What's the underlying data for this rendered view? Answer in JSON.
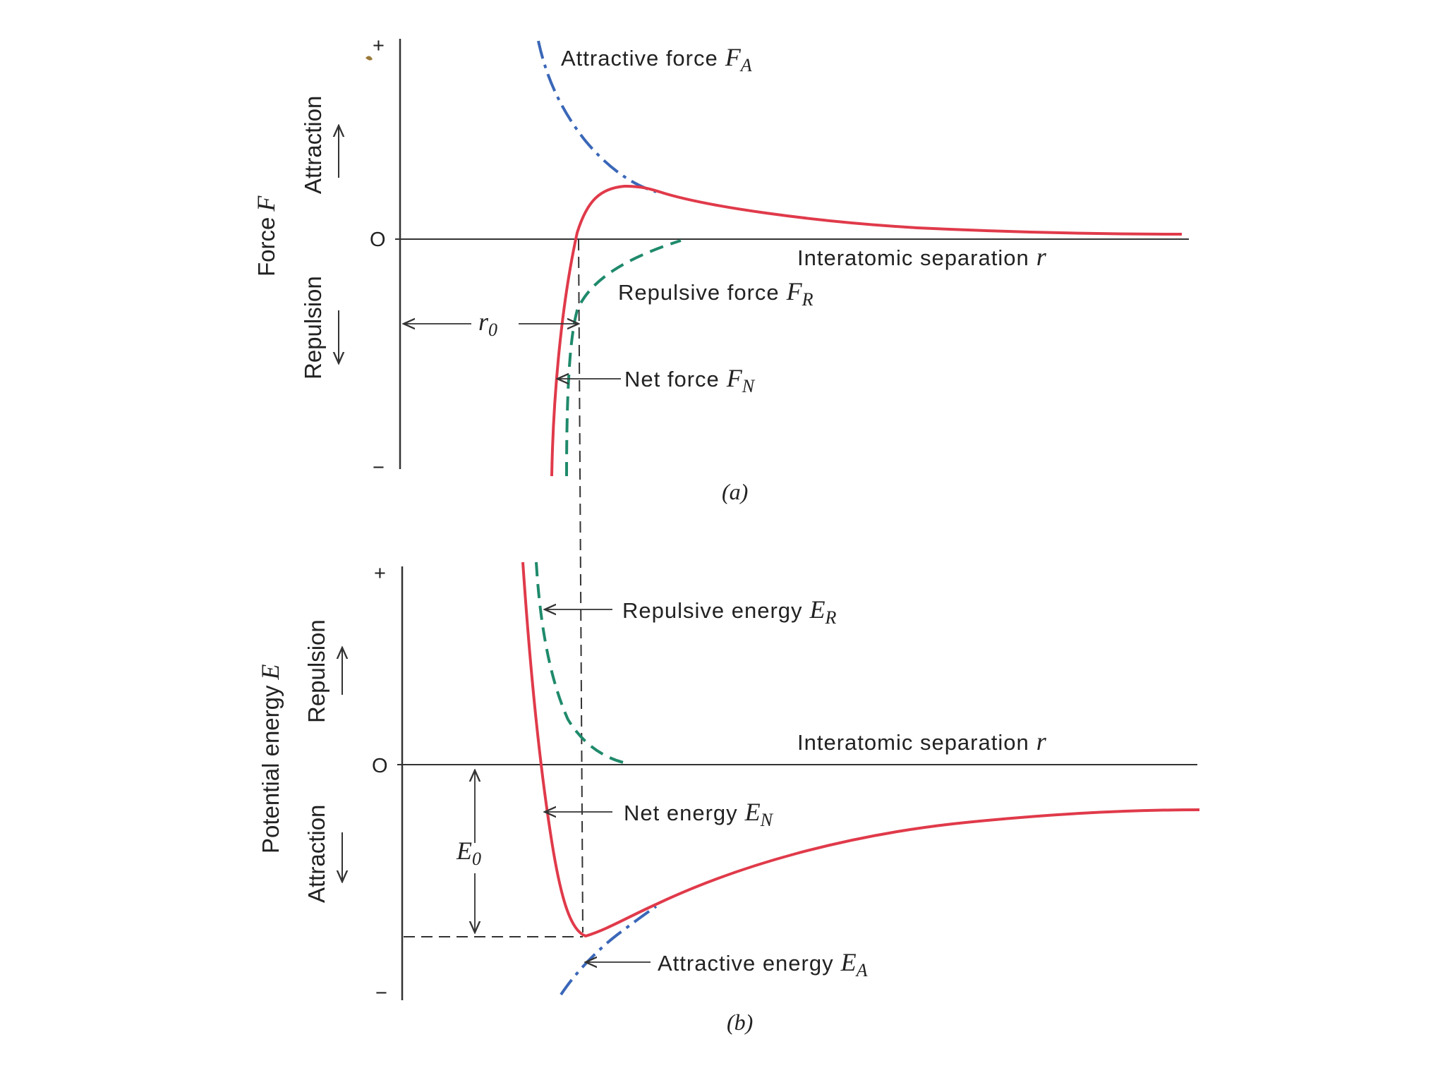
{
  "chart_data": [
    {
      "id": "a",
      "type": "line",
      "panel_label": "(a)",
      "ylabel_text": "Force",
      "ylabel_symbol": "F",
      "xlabel_text": "Interatomic separation",
      "xlabel_symbol": "r",
      "y_tick_plus": "+",
      "y_tick_zero": "O",
      "y_tick_minus": "−",
      "upper_region": "Attraction",
      "lower_region": "Repulsion",
      "equilibrium_text": "r",
      "equilibrium_sub": "0",
      "series": [
        {
          "name": "Attractive force",
          "symbol": "F",
          "sub": "A",
          "style": "dash-dot",
          "color": "#3a67b8"
        },
        {
          "name": "Repulsive force",
          "symbol": "F",
          "sub": "R",
          "style": "dashed",
          "color": "#1f8a6b"
        },
        {
          "name": "Net force",
          "symbol": "F",
          "sub": "N",
          "style": "solid",
          "color": "#e03a4a"
        }
      ]
    },
    {
      "id": "b",
      "type": "line",
      "panel_label": "(b)",
      "ylabel_text": "Potential energy",
      "ylabel_symbol": "E",
      "xlabel_text": "Interatomic separation",
      "xlabel_symbol": "r",
      "y_tick_plus": "+",
      "y_tick_zero": "O",
      "y_tick_minus": "−",
      "upper_region": "Repulsion",
      "lower_region": "Attraction",
      "min_energy_text": "E",
      "min_energy_sub": "0",
      "series": [
        {
          "name": "Repulsive energy",
          "symbol": "E",
          "sub": "R",
          "style": "dashed",
          "color": "#1f8a6b"
        },
        {
          "name": "Net energy",
          "symbol": "E",
          "sub": "N",
          "style": "solid",
          "color": "#e03a4a"
        },
        {
          "name": "Attractive energy",
          "symbol": "E",
          "sub": "A",
          "style": "dash-dot",
          "color": "#3a67b8"
        }
      ]
    }
  ]
}
